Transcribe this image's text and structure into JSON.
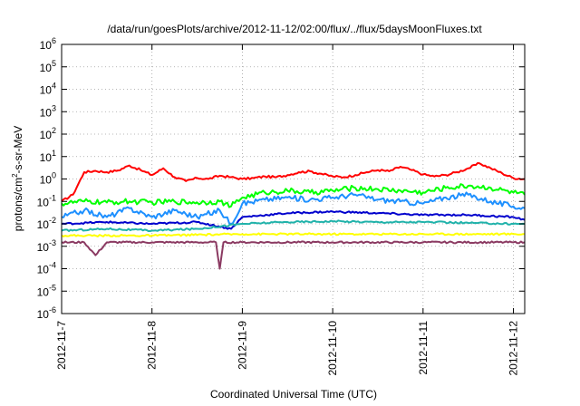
{
  "chart_data": {
    "type": "line",
    "title": "/data/run/goesPlots/archive/2012-11-12/02:00/flux/../flux/5daysMoonFluxes.txt",
    "xlabel": "Coordinated Universal Time (UTC)",
    "ylabel": "protons/cm2-s-sr-MeV",
    "ylabel_parts": {
      "base": "protons/cm",
      "sup": "2",
      "rest": "-s-sr-MeV"
    },
    "y_scale": "log",
    "ylim": [
      1e-06,
      1000000.0
    ],
    "y_ticks": [
      {
        "base": "10",
        "exp": "-6"
      },
      {
        "base": "10",
        "exp": "-5"
      },
      {
        "base": "10",
        "exp": "-4"
      },
      {
        "base": "10",
        "exp": "-3"
      },
      {
        "base": "10",
        "exp": "-2"
      },
      {
        "base": "10",
        "exp": "-1"
      },
      {
        "base": "10",
        "exp": "0"
      },
      {
        "base": "10",
        "exp": "1"
      },
      {
        "base": "10",
        "exp": "2"
      },
      {
        "base": "10",
        "exp": "3"
      },
      {
        "base": "10",
        "exp": "4"
      },
      {
        "base": "10",
        "exp": "5"
      },
      {
        "base": "10",
        "exp": "6"
      }
    ],
    "xlim": [
      "2012-11-07T00:00",
      "2012-11-12T03:00"
    ],
    "x_ticks": [
      "2012-11-7",
      "2012-11-8",
      "2012-11-9",
      "2012-11-10",
      "2012-11-11",
      "2012-11-12"
    ],
    "grid": true,
    "x_day_ticks": [
      "2012-11-07",
      "2012-11-08",
      "2012-11-09",
      "2012-11-10",
      "2012-11-11",
      "2012-11-12"
    ],
    "series": [
      {
        "color": "#ff0000",
        "x": [
          "2012-11-07T00:00",
          "2012-11-07T03:00",
          "2012-11-07T06:00",
          "2012-11-07T09:00",
          "2012-11-07T12:00",
          "2012-11-07T15:00",
          "2012-11-07T18:00",
          "2012-11-07T21:00",
          "2012-11-08T00:00",
          "2012-11-08T03:00",
          "2012-11-08T06:00",
          "2012-11-08T09:00",
          "2012-11-08T12:00",
          "2012-11-08T15:00",
          "2012-11-08T18:00",
          "2012-11-08T21:00",
          "2012-11-09T00:00",
          "2012-11-09T03:00",
          "2012-11-09T06:00",
          "2012-11-09T09:00",
          "2012-11-09T12:00",
          "2012-11-09T15:00",
          "2012-11-09T18:00",
          "2012-11-09T21:00",
          "2012-11-10T00:00",
          "2012-11-10T03:00",
          "2012-11-10T06:00",
          "2012-11-10T09:00",
          "2012-11-10T12:00",
          "2012-11-10T15:00",
          "2012-11-10T18:00",
          "2012-11-10T21:00",
          "2012-11-11T00:00",
          "2012-11-11T03:00",
          "2012-11-11T06:00",
          "2012-11-11T09:00",
          "2012-11-11T12:00",
          "2012-11-11T15:00",
          "2012-11-11T18:00",
          "2012-11-11T21:00",
          "2012-11-12T00:00",
          "2012-11-12T03:00"
        ],
        "y": [
          0.1,
          0.2,
          2.0,
          2.3,
          2.0,
          2.4,
          4.0,
          2.5,
          1.5,
          3.0,
          1.2,
          0.8,
          1.1,
          1.0,
          1.4,
          1.2,
          1.0,
          1.1,
          1.3,
          1.2,
          1.5,
          2.0,
          2.2,
          1.7,
          1.3,
          1.2,
          1.5,
          2.0,
          2.5,
          2.2,
          3.5,
          2.5,
          1.6,
          1.3,
          1.5,
          2.0,
          3.0,
          5.0,
          3.0,
          1.8,
          1.1,
          1.0
        ]
      },
      {
        "color": "#00ff00",
        "x": [
          "2012-11-07T00:00",
          "2012-11-07T06:00",
          "2012-11-07T12:00",
          "2012-11-07T18:00",
          "2012-11-08T00:00",
          "2012-11-08T06:00",
          "2012-11-08T12:00",
          "2012-11-08T18:00",
          "2012-11-08T21:00",
          "2012-11-09T00:00",
          "2012-11-09T06:00",
          "2012-11-09T12:00",
          "2012-11-09T18:00",
          "2012-11-10T00:00",
          "2012-11-10T06:00",
          "2012-11-10T12:00",
          "2012-11-10T18:00",
          "2012-11-11T00:00",
          "2012-11-11T06:00",
          "2012-11-11T12:00",
          "2012-11-11T18:00",
          "2012-11-12T00:00",
          "2012-11-12T03:00"
        ],
        "y": [
          0.08,
          0.1,
          0.09,
          0.1,
          0.09,
          0.1,
          0.09,
          0.1,
          0.06,
          0.15,
          0.25,
          0.3,
          0.25,
          0.3,
          0.4,
          0.35,
          0.3,
          0.25,
          0.4,
          0.5,
          0.4,
          0.25,
          0.2
        ]
      },
      {
        "color": "#1e90ff",
        "x": [
          "2012-11-07T00:00",
          "2012-11-07T06:00",
          "2012-11-07T12:00",
          "2012-11-07T18:00",
          "2012-11-08T00:00",
          "2012-11-08T06:00",
          "2012-11-08T12:00",
          "2012-11-08T18:00",
          "2012-11-08T21:00",
          "2012-11-09T00:00",
          "2012-11-09T06:00",
          "2012-11-09T12:00",
          "2012-11-09T18:00",
          "2012-11-10T00:00",
          "2012-11-10T06:00",
          "2012-11-10T12:00",
          "2012-11-10T18:00",
          "2012-11-11T00:00",
          "2012-11-11T06:00",
          "2012-11-11T12:00",
          "2012-11-11T18:00",
          "2012-11-12T00:00",
          "2012-11-12T03:00"
        ],
        "y": [
          0.02,
          0.04,
          0.02,
          0.05,
          0.02,
          0.04,
          0.02,
          0.04,
          0.01,
          0.08,
          0.12,
          0.15,
          0.12,
          0.15,
          0.2,
          0.12,
          0.1,
          0.08,
          0.15,
          0.2,
          0.1,
          0.06,
          0.05
        ]
      },
      {
        "color": "#0000cd",
        "x": [
          "2012-11-07T00:00",
          "2012-11-07T12:00",
          "2012-11-08T00:00",
          "2012-11-08T12:00",
          "2012-11-08T21:00",
          "2012-11-09T00:00",
          "2012-11-09T12:00",
          "2012-11-10T00:00",
          "2012-11-10T12:00",
          "2012-11-11T00:00",
          "2012-11-11T12:00",
          "2012-11-12T00:00",
          "2012-11-12T03:00"
        ],
        "y": [
          0.01,
          0.012,
          0.01,
          0.012,
          0.006,
          0.02,
          0.03,
          0.035,
          0.03,
          0.025,
          0.025,
          0.02,
          0.015
        ]
      },
      {
        "color": "#20b2aa",
        "x": [
          "2012-11-07T00:00",
          "2012-11-07T12:00",
          "2012-11-08T00:00",
          "2012-11-08T12:00",
          "2012-11-09T00:00",
          "2012-11-09T12:00",
          "2012-11-10T00:00",
          "2012-11-10T12:00",
          "2012-11-11T00:00",
          "2012-11-11T12:00",
          "2012-11-12T00:00",
          "2012-11-12T03:00"
        ],
        "y": [
          0.005,
          0.006,
          0.005,
          0.006,
          0.01,
          0.012,
          0.013,
          0.012,
          0.012,
          0.011,
          0.01,
          0.01
        ]
      },
      {
        "color": "#ffff00",
        "x": [
          "2012-11-07T00:00",
          "2012-11-08T00:00",
          "2012-11-09T00:00",
          "2012-11-10T00:00",
          "2012-11-11T00:00",
          "2012-11-12T00:00",
          "2012-11-12T03:00"
        ],
        "y": [
          0.003,
          0.003,
          0.0035,
          0.0035,
          0.0035,
          0.0035,
          0.0035
        ]
      },
      {
        "color": "#8b3a62",
        "x": [
          "2012-11-07T00:00",
          "2012-11-07T06:00",
          "2012-11-07T09:00",
          "2012-11-07T12:00",
          "2012-11-08T00:00",
          "2012-11-08T12:00",
          "2012-11-08T17:00",
          "2012-11-08T18:00",
          "2012-11-08T19:00",
          "2012-11-09T00:00",
          "2012-11-10T00:00",
          "2012-11-11T00:00",
          "2012-11-12T00:00",
          "2012-11-12T03:00"
        ],
        "y": [
          0.0015,
          0.0015,
          0.0004,
          0.0015,
          0.0015,
          0.0015,
          0.0015,
          0.0001,
          0.0015,
          0.0015,
          0.0015,
          0.0015,
          0.0015,
          0.0015
        ]
      }
    ]
  }
}
